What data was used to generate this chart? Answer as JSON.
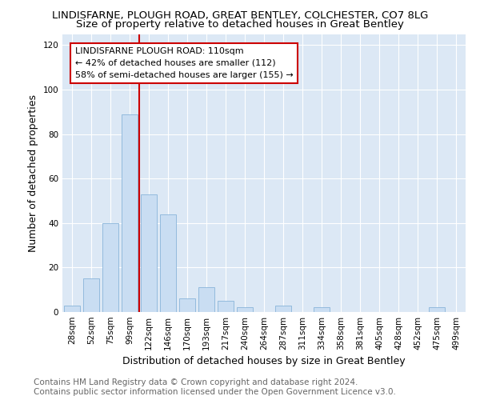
{
  "title": "LINDISFARNE, PLOUGH ROAD, GREAT BENTLEY, COLCHESTER, CO7 8LG",
  "subtitle": "Size of property relative to detached houses in Great Bentley",
  "xlabel": "Distribution of detached houses by size in Great Bentley",
  "ylabel": "Number of detached properties",
  "categories": [
    "28sqm",
    "52sqm",
    "75sqm",
    "99sqm",
    "122sqm",
    "146sqm",
    "170sqm",
    "193sqm",
    "217sqm",
    "240sqm",
    "264sqm",
    "287sqm",
    "311sqm",
    "334sqm",
    "358sqm",
    "381sqm",
    "405sqm",
    "428sqm",
    "452sqm",
    "475sqm",
    "499sqm"
  ],
  "values": [
    3,
    15,
    40,
    89,
    53,
    44,
    6,
    11,
    5,
    2,
    0,
    3,
    0,
    2,
    0,
    0,
    0,
    0,
    0,
    2,
    0
  ],
  "bar_color": "#c9ddf2",
  "bar_edge_color": "#89b4d9",
  "ref_line_x": 3.5,
  "ref_line_label": "LINDISFARNE PLOUGH ROAD: 110sqm",
  "ref_line_color": "#cc0000",
  "annotation_line1": "← 42% of detached houses are smaller (112)",
  "annotation_line2": "58% of semi-detached houses are larger (155) →",
  "annotation_box_color": "#cc0000",
  "ylim": [
    0,
    125
  ],
  "yticks": [
    0,
    20,
    40,
    60,
    80,
    100,
    120
  ],
  "background_color": "#dce8f5",
  "footer_line1": "Contains HM Land Registry data © Crown copyright and database right 2024.",
  "footer_line2": "Contains public sector information licensed under the Open Government Licence v3.0.",
  "title_fontsize": 9.5,
  "subtitle_fontsize": 9.5,
  "axis_label_fontsize": 9,
  "tick_fontsize": 7.5,
  "annotation_fontsize": 8,
  "footer_fontsize": 7.5
}
